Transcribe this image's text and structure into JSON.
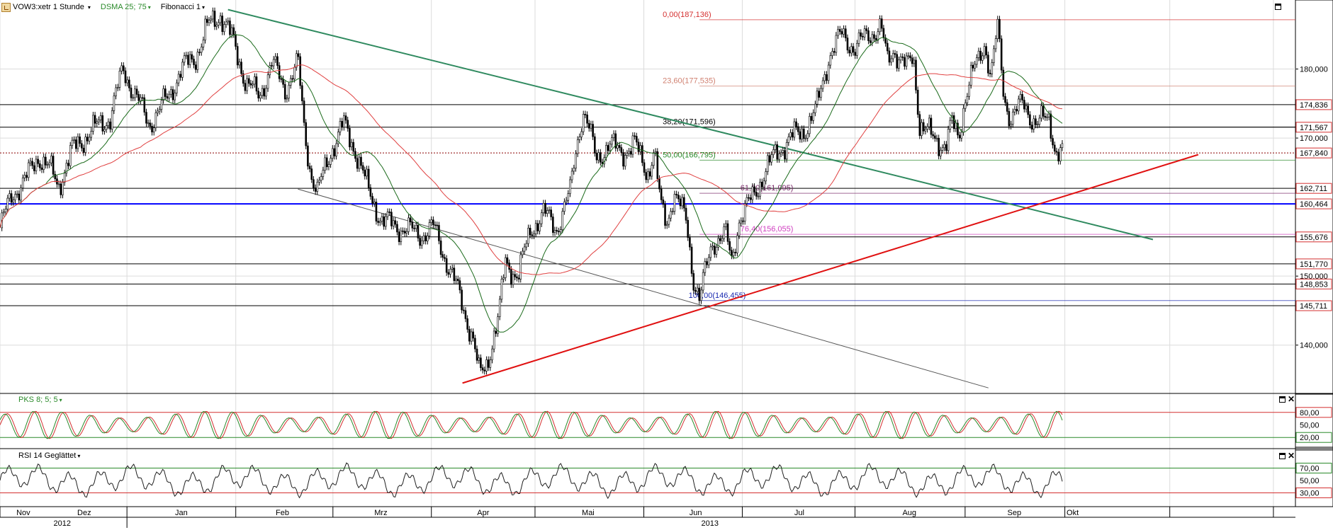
{
  "toolbar": {
    "symbol_label": "VOW3:xetr 1 Stunde",
    "indicator1_label": "DSMA 25; 75",
    "indicator2_label": "Fibonacci 1",
    "indicator1_color": "#2a8a2a"
  },
  "chart_data": [
    {
      "type": "line",
      "name": "price",
      "ylim": [
        133,
        190
      ],
      "y_ticks": [
        "180,000",
        "170,000",
        "150,000",
        "140,000"
      ],
      "y_tick_values": [
        180,
        170,
        150,
        140
      ],
      "price_boxes": [
        {
          "label": "174,836",
          "value": 174.836
        },
        {
          "label": "171,567",
          "value": 171.567
        },
        {
          "label": "167,840",
          "value": 167.84
        },
        {
          "label": "162,711",
          "value": 162.711
        },
        {
          "label": "160,464",
          "value": 160.464
        },
        {
          "label": "155,676",
          "value": 155.676
        },
        {
          "label": "151,770",
          "value": 151.77
        },
        {
          "label": "148,853",
          "value": 148.853
        },
        {
          "label": "145,711",
          "value": 145.711
        }
      ],
      "horizontal_lines": [
        {
          "value": 174.836,
          "color": "#000000"
        },
        {
          "value": 171.567,
          "color": "#000000"
        },
        {
          "value": 167.84,
          "color": "#8b0000",
          "style": "dotted"
        },
        {
          "value": 162.711,
          "color": "#000000"
        },
        {
          "value": 160.464,
          "color": "#0000ff",
          "bold": true
        },
        {
          "value": 155.676,
          "color": "#000000"
        },
        {
          "value": 151.77,
          "color": "#000000"
        },
        {
          "value": 148.853,
          "color": "#000000"
        },
        {
          "value": 145.711,
          "color": "#000000"
        }
      ],
      "fibonacci": [
        {
          "label": "0,00(187,136)",
          "value": 187.136,
          "color": "#d43030"
        },
        {
          "label": "23,60(177,535)",
          "value": 177.535,
          "color": "#d08070"
        },
        {
          "label": "38,20(171,596)",
          "value": 171.596,
          "color": "#000000"
        },
        {
          "label": "50,00(166,795)",
          "value": 166.795,
          "color": "#2a8a2a"
        },
        {
          "label": "61,80(161,995)",
          "value": 161.995,
          "color": "#7a2a6a"
        },
        {
          "label": "76,40(156,055)",
          "value": 156.055,
          "color": "#d040c0"
        },
        {
          "label": "100,00(146,455)",
          "value": 146.455,
          "color": "#1a2ab0"
        }
      ],
      "trendlines": [
        {
          "name": "green-resistance",
          "color": "#2f8a5f",
          "from": [
            0.176,
            188.6
          ],
          "to": [
            0.89,
            155.3
          ]
        },
        {
          "name": "red-support",
          "color": "#e01010",
          "from": [
            0.357,
            134.5
          ],
          "to": [
            0.925,
            167.6
          ]
        },
        {
          "name": "grey-channel",
          "color": "#555555",
          "from": [
            0.23,
            162.6
          ],
          "to": [
            0.763,
            133.8
          ]
        }
      ],
      "price_path": [
        [
          0.0,
          157.0
        ],
        [
          0.01,
          162.0
        ],
        [
          0.02,
          164.0
        ],
        [
          0.03,
          167.5
        ],
        [
          0.04,
          165.0
        ],
        [
          0.045,
          163.0
        ],
        [
          0.055,
          168.0
        ],
        [
          0.07,
          171.0
        ],
        [
          0.085,
          173.0
        ],
        [
          0.095,
          180.0
        ],
        [
          0.105,
          176.0
        ],
        [
          0.115,
          172.0
        ],
        [
          0.13,
          176.0
        ],
        [
          0.14,
          180.0
        ],
        [
          0.15,
          181.5
        ],
        [
          0.16,
          186.0
        ],
        [
          0.17,
          188.0
        ],
        [
          0.18,
          184.0
        ],
        [
          0.19,
          178.0
        ],
        [
          0.2,
          176.0
        ],
        [
          0.21,
          181.0
        ],
        [
          0.22,
          177.0
        ],
        [
          0.23,
          181.0
        ],
        [
          0.235,
          171.0
        ],
        [
          0.24,
          165.0
        ],
        [
          0.245,
          162.0
        ],
        [
          0.255,
          168.0
        ],
        [
          0.265,
          172.0
        ],
        [
          0.275,
          168.0
        ],
        [
          0.285,
          162.0
        ],
        [
          0.295,
          158.0
        ],
        [
          0.31,
          157.0
        ],
        [
          0.325,
          156.0
        ],
        [
          0.335,
          157.0
        ],
        [
          0.345,
          152.0
        ],
        [
          0.355,
          147.0
        ],
        [
          0.365,
          141.0
        ],
        [
          0.37,
          135.5
        ],
        [
          0.375,
          137.0
        ],
        [
          0.385,
          144.0
        ],
        [
          0.39,
          152.0
        ],
        [
          0.4,
          150.0
        ],
        [
          0.41,
          157.0
        ],
        [
          0.42,
          159.0
        ],
        [
          0.43,
          157.0
        ],
        [
          0.44,
          162.0
        ],
        [
          0.445,
          169.0
        ],
        [
          0.45,
          174.0
        ],
        [
          0.455,
          171.0
        ],
        [
          0.46,
          167.0
        ],
        [
          0.47,
          169.0
        ],
        [
          0.48,
          168.0
        ],
        [
          0.49,
          169.0
        ],
        [
          0.5,
          165.0
        ],
        [
          0.505,
          168.0
        ],
        [
          0.51,
          160.0
        ],
        [
          0.515,
          158.0
        ],
        [
          0.52,
          162.0
        ],
        [
          0.53,
          158.0
        ],
        [
          0.535,
          150.0
        ],
        [
          0.54,
          146.5
        ],
        [
          0.545,
          151.0
        ],
        [
          0.55,
          155.0
        ],
        [
          0.56,
          156.0
        ],
        [
          0.565,
          152.0
        ],
        [
          0.57,
          158.0
        ],
        [
          0.58,
          161.0
        ],
        [
          0.59,
          165.0
        ],
        [
          0.6,
          168.0
        ],
        [
          0.61,
          170.0
        ],
        [
          0.62,
          171.0
        ],
        [
          0.63,
          174.0
        ],
        [
          0.64,
          182.0
        ],
        [
          0.65,
          185.0
        ],
        [
          0.66,
          183.0
        ],
        [
          0.67,
          185.0
        ],
        [
          0.68,
          186.0
        ],
        [
          0.685,
          181.0
        ],
        [
          0.69,
          183.0
        ],
        [
          0.7,
          180.0
        ],
        [
          0.705,
          182.0
        ],
        [
          0.71,
          172.0
        ],
        [
          0.72,
          170.0
        ],
        [
          0.73,
          169.0
        ],
        [
          0.735,
          172.0
        ],
        [
          0.74,
          170.0
        ],
        [
          0.745,
          176.0
        ],
        [
          0.75,
          179.0
        ],
        [
          0.755,
          181.0
        ],
        [
          0.76,
          184.0
        ],
        [
          0.765,
          179.0
        ],
        [
          0.77,
          186.0
        ],
        [
          0.775,
          176.0
        ],
        [
          0.78,
          173.0
        ],
        [
          0.79,
          175.0
        ],
        [
          0.8,
          172.0
        ],
        [
          0.81,
          173.0
        ],
        [
          0.815,
          168.0
        ],
        [
          0.82,
          167.8
        ]
      ]
    },
    {
      "type": "line",
      "name": "oscillator",
      "title": "PKS 8; 5; 5",
      "ylim": [
        0,
        100
      ],
      "y_ticks": [
        "80,00",
        "50,00",
        "20,00"
      ],
      "y_tick_values": [
        80,
        50,
        20
      ],
      "bands": [
        {
          "value": 80,
          "color": "#d43030"
        },
        {
          "value": 20,
          "color": "#2a8a2a"
        }
      ],
      "series": [
        {
          "color": "#d43030"
        },
        {
          "color": "#2a8a2a"
        }
      ]
    },
    {
      "type": "line",
      "name": "rsi",
      "title": "RSI 14 Geglättet",
      "ylim": [
        10,
        90
      ],
      "y_ticks": [
        "70,00",
        "50,00",
        "30,00"
      ],
      "y_tick_values": [
        70,
        50,
        30
      ],
      "bands": [
        {
          "value": 70,
          "color": "#2a8a2a"
        },
        {
          "value": 30,
          "color": "#d43030"
        }
      ],
      "series": [
        {
          "color": "#202020"
        }
      ]
    }
  ],
  "x_axis": {
    "months": [
      {
        "label": "Nov",
        "pos": 0.018
      },
      {
        "label": "Dez",
        "pos": 0.065
      },
      {
        "label": "Jan",
        "pos": 0.14
      },
      {
        "label": "Feb",
        "pos": 0.218
      },
      {
        "label": "Mrz",
        "pos": 0.294
      },
      {
        "label": "Apr",
        "pos": 0.373
      },
      {
        "label": "Mai",
        "pos": 0.454
      },
      {
        "label": "Jun",
        "pos": 0.537
      },
      {
        "label": "Jul",
        "pos": 0.617
      },
      {
        "label": "Aug",
        "pos": 0.702
      },
      {
        "label": "Sep",
        "pos": 0.783
      },
      {
        "label": "Okt",
        "pos": 0.828
      }
    ],
    "month_separators": [
      0.0,
      0.098,
      0.182,
      0.257,
      0.333,
      0.413,
      0.497,
      0.573,
      0.66,
      0.745,
      0.822,
      0.903,
      0.983
    ],
    "years": [
      {
        "label": "2012",
        "pos": 0.048
      },
      {
        "label": "2013",
        "pos": 0.548
      }
    ],
    "year_separators": [
      0.098
    ]
  },
  "colors": {
    "grid": "#dcdcdc",
    "candle_up": "#ffffff",
    "candle_down": "#000000",
    "sma_short": "#1a6a1a",
    "sma_long": "#e04040",
    "price_box_border": "#d43030"
  }
}
